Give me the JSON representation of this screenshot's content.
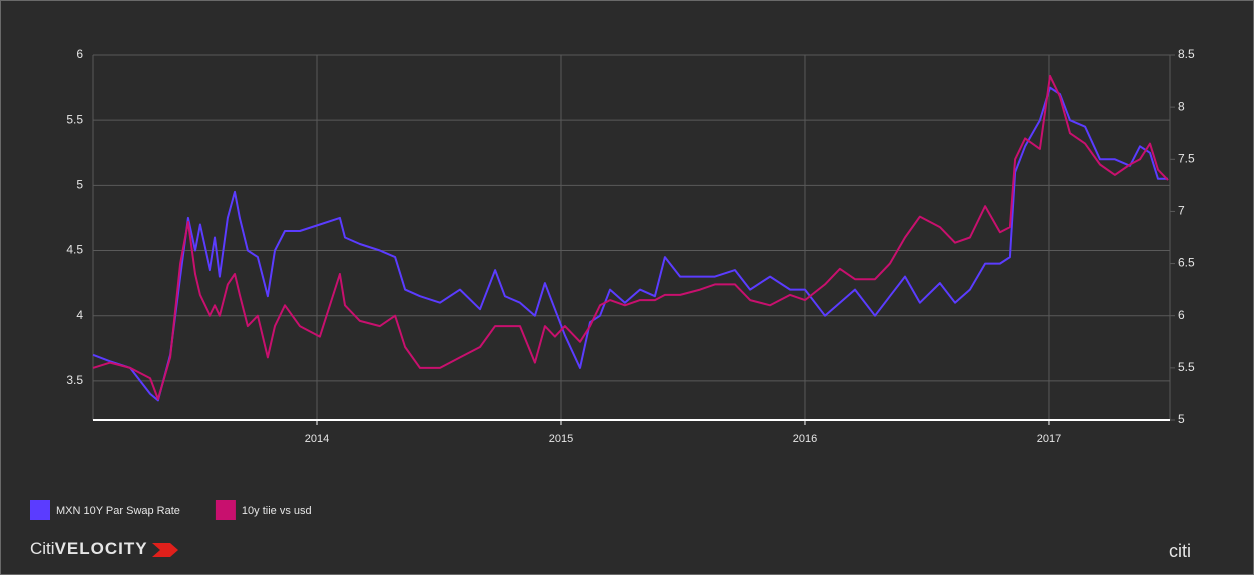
{
  "chart_data": {
    "type": "line",
    "x": [
      2013.082,
      2013.152,
      2013.234,
      2013.316,
      2013.348,
      2013.398,
      2013.439,
      2013.471,
      2013.5,
      2013.52,
      2013.561,
      2013.582,
      2013.602,
      2013.635,
      2013.664,
      2013.684,
      2013.717,
      2013.758,
      2013.799,
      2013.828,
      2013.869,
      2013.93,
      2014.012,
      2014.094,
      2014.115,
      2014.176,
      2014.258,
      2014.32,
      2014.361,
      2014.422,
      2014.504,
      2014.586,
      2014.668,
      2014.73,
      2014.77,
      2014.832,
      2014.893,
      2014.934,
      2014.975,
      2015.016,
      2015.078,
      2015.119,
      2015.16,
      2015.201,
      2015.262,
      2015.324,
      2015.385,
      2015.426,
      2015.488,
      2015.57,
      2015.631,
      2015.713,
      2015.775,
      2015.857,
      2015.939,
      2016.0,
      2016.082,
      2016.143,
      2016.205,
      2016.287,
      2016.348,
      2016.41,
      2016.471,
      2016.553,
      2016.615,
      2016.676,
      2016.738,
      2016.799,
      2016.84,
      2016.861,
      2016.902,
      2016.963,
      2017.004,
      2017.045,
      2017.086,
      2017.148,
      2017.209,
      2017.27,
      2017.332,
      2017.373,
      2017.414,
      2017.447,
      2017.488
    ],
    "series": [
      {
        "name": "MXN 10Y Par Swap Rate",
        "color": "#5b3cff",
        "values": [
          3.7,
          3.65,
          3.6,
          3.4,
          3.35,
          3.7,
          4.3,
          4.75,
          4.5,
          4.7,
          4.35,
          4.6,
          4.3,
          4.75,
          4.95,
          4.75,
          4.5,
          4.45,
          4.15,
          4.5,
          4.65,
          4.65,
          4.7,
          4.75,
          4.6,
          4.55,
          4.5,
          4.45,
          4.2,
          4.15,
          4.1,
          4.2,
          4.05,
          4.35,
          4.15,
          4.1,
          4.0,
          4.25,
          4.05,
          3.85,
          3.6,
          3.95,
          4.0,
          4.2,
          4.1,
          4.2,
          4.15,
          4.45,
          4.3,
          4.3,
          4.3,
          4.35,
          4.2,
          4.3,
          4.2,
          4.2,
          4.0,
          4.1,
          4.2,
          4.0,
          4.15,
          4.3,
          4.1,
          4.25,
          4.1,
          4.2,
          4.4,
          4.4,
          4.45,
          5.1,
          5.3,
          5.5,
          5.75,
          5.7,
          5.5,
          5.45,
          5.2,
          5.2,
          5.15,
          5.3,
          5.25,
          5.05,
          5.05
        ]
      },
      {
        "name": "10y tiie vs usd",
        "color": "#c8106e",
        "axis": "y2",
        "values": [
          5.5,
          5.55,
          5.5,
          5.4,
          5.2,
          5.6,
          6.5,
          6.9,
          6.4,
          6.2,
          6.0,
          6.1,
          6.0,
          6.3,
          6.4,
          6.2,
          5.9,
          6.0,
          5.6,
          5.9,
          6.1,
          5.9,
          5.8,
          6.4,
          6.1,
          5.95,
          5.9,
          6.0,
          5.7,
          5.5,
          5.5,
          5.6,
          5.7,
          5.9,
          5.9,
          5.9,
          5.55,
          5.9,
          5.8,
          5.9,
          5.75,
          5.9,
          6.1,
          6.15,
          6.1,
          6.15,
          6.15,
          6.2,
          6.2,
          6.25,
          6.3,
          6.3,
          6.15,
          6.1,
          6.2,
          6.15,
          6.3,
          6.45,
          6.35,
          6.35,
          6.5,
          6.75,
          6.95,
          6.85,
          6.7,
          6.75,
          7.05,
          6.8,
          6.85,
          7.5,
          7.7,
          7.6,
          8.3,
          8.1,
          7.75,
          7.65,
          7.45,
          7.35,
          7.45,
          7.5,
          7.65,
          7.4,
          7.3
        ]
      }
    ],
    "xlim": [
      2013.082,
      2017.496
    ],
    "xticks": [
      2014,
      2015,
      2016,
      2017
    ],
    "ylim": [
      3.2,
      6
    ],
    "yticks": [
      3.5,
      4,
      4.5,
      5,
      5.5,
      6
    ],
    "y2lim": [
      5,
      8.5
    ],
    "y2ticks": [
      5,
      5.5,
      6,
      6.5,
      7,
      7.5,
      8,
      8.5
    ],
    "grid": true,
    "legend": "bottom-left"
  },
  "branding": {
    "left_prefix": "Citi",
    "left_name": "VELOCITY",
    "right": "citi"
  }
}
